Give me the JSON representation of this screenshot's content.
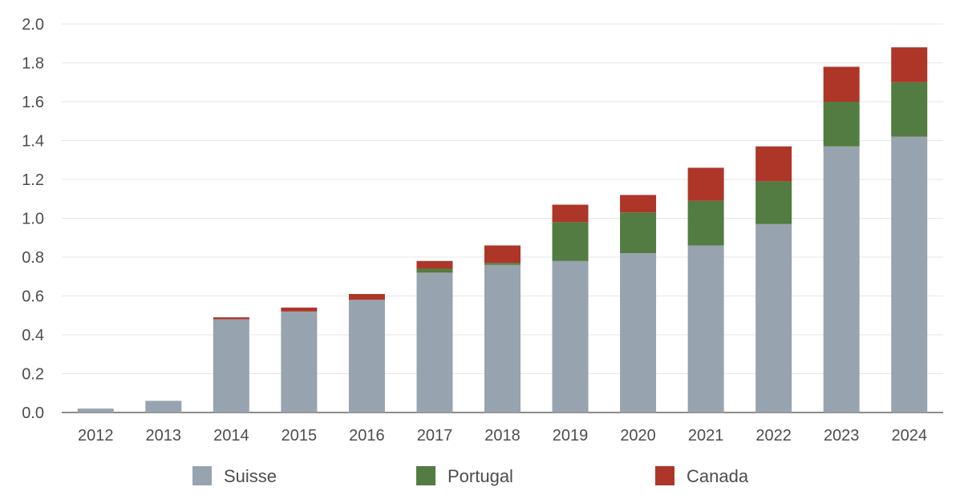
{
  "chart_data": {
    "type": "bar",
    "stacked": true,
    "categories": [
      "2012",
      "2013",
      "2014",
      "2015",
      "2016",
      "2017",
      "2018",
      "2019",
      "2020",
      "2021",
      "2022",
      "2023",
      "2024"
    ],
    "series": [
      {
        "name": "Suisse",
        "color": "#97a3ae",
        "values": [
          0.02,
          0.06,
          0.48,
          0.52,
          0.58,
          0.72,
          0.76,
          0.78,
          0.82,
          0.86,
          0.97,
          1.37,
          1.42
        ]
      },
      {
        "name": "Portugal",
        "color": "#527c41",
        "values": [
          0.0,
          0.0,
          0.0,
          0.0,
          0.0,
          0.02,
          0.01,
          0.2,
          0.21,
          0.23,
          0.22,
          0.23,
          0.28
        ]
      },
      {
        "name": "Canada",
        "color": "#ad3629",
        "values": [
          0.0,
          0.0,
          0.01,
          0.02,
          0.03,
          0.04,
          0.09,
          0.09,
          0.09,
          0.17,
          0.18,
          0.18,
          0.18
        ]
      }
    ],
    "ylim": [
      0,
      2.0
    ],
    "yticks": [
      "0.0",
      "0.2",
      "0.4",
      "0.6",
      "0.8",
      "1.0",
      "1.2",
      "1.4",
      "1.6",
      "1.8",
      "2.0"
    ],
    "grid": true,
    "legend_position": "bottom"
  }
}
